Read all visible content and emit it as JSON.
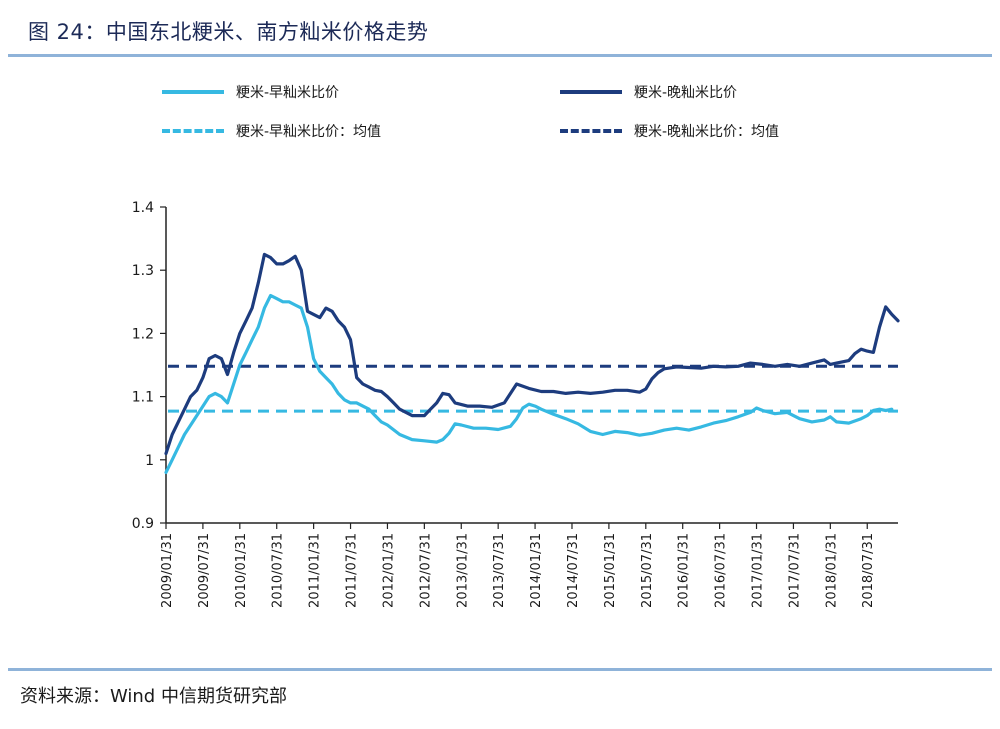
{
  "header": {
    "title": "图 24：中国东北粳米、南方籼米价格走势"
  },
  "footer": {
    "source": "资料来源：Wind 中信期货研究部"
  },
  "colors": {
    "light_series": "#36b9e2",
    "dark_series": "#1d3c7e",
    "rule": "#8fb3d9",
    "axis": "#222222"
  },
  "chart_data": {
    "type": "line",
    "title": "",
    "xlabel": "",
    "ylabel": "",
    "ylim": [
      0.9,
      1.4
    ],
    "yticks": [
      "0.9",
      "1",
      "1.1",
      "1.2",
      "1.3",
      "1.4"
    ],
    "xticks": [
      "2009/01/31",
      "2009/07/31",
      "2010/01/31",
      "2010/07/31",
      "2011/01/31",
      "2011/07/31",
      "2012/01/31",
      "2012/07/31",
      "2013/01/31",
      "2013/07/31",
      "2014/01/31",
      "2014/07/31",
      "2015/01/31",
      "2015/07/31",
      "2016/01/31",
      "2016/07/31",
      "2017/01/31",
      "2017/07/31",
      "2018/01/31",
      "2018/07/31"
    ],
    "legend_position": "top",
    "grid": false,
    "series": [
      {
        "name": "粳米-早籼米比价",
        "style": "solid",
        "color": "#36b9e2",
        "points": [
          [
            0,
            0.98
          ],
          [
            1,
            1.0
          ],
          [
            2,
            1.02
          ],
          [
            3,
            1.04
          ],
          [
            5,
            1.07
          ],
          [
            7,
            1.1
          ],
          [
            8,
            1.105
          ],
          [
            9,
            1.1
          ],
          [
            10,
            1.09
          ],
          [
            12,
            1.15
          ],
          [
            13,
            1.17
          ],
          [
            14,
            1.19
          ],
          [
            15,
            1.21
          ],
          [
            16,
            1.24
          ],
          [
            17,
            1.26
          ],
          [
            18,
            1.255
          ],
          [
            19,
            1.25
          ],
          [
            20,
            1.25
          ],
          [
            21,
            1.245
          ],
          [
            22,
            1.24
          ],
          [
            23,
            1.21
          ],
          [
            24,
            1.16
          ],
          [
            25,
            1.14
          ],
          [
            26,
            1.13
          ],
          [
            27,
            1.12
          ],
          [
            28,
            1.105
          ],
          [
            29,
            1.095
          ],
          [
            30,
            1.09
          ],
          [
            31,
            1.09
          ],
          [
            32,
            1.085
          ],
          [
            33,
            1.08
          ],
          [
            34,
            1.07
          ],
          [
            35,
            1.06
          ],
          [
            36,
            1.055
          ],
          [
            38,
            1.04
          ],
          [
            40,
            1.032
          ],
          [
            42,
            1.03
          ],
          [
            44,
            1.028
          ],
          [
            45,
            1.032
          ],
          [
            46,
            1.042
          ],
          [
            47,
            1.057
          ],
          [
            48,
            1.055
          ],
          [
            50,
            1.05
          ],
          [
            52,
            1.05
          ],
          [
            54,
            1.048
          ],
          [
            56,
            1.053
          ],
          [
            57,
            1.065
          ],
          [
            58,
            1.082
          ],
          [
            59,
            1.088
          ],
          [
            60,
            1.085
          ],
          [
            61,
            1.08
          ],
          [
            63,
            1.072
          ],
          [
            65,
            1.065
          ],
          [
            67,
            1.057
          ],
          [
            69,
            1.045
          ],
          [
            71,
            1.04
          ],
          [
            73,
            1.045
          ],
          [
            75,
            1.043
          ],
          [
            77,
            1.039
          ],
          [
            79,
            1.042
          ],
          [
            81,
            1.047
          ],
          [
            83,
            1.05
          ],
          [
            85,
            1.047
          ],
          [
            87,
            1.052
          ],
          [
            89,
            1.058
          ],
          [
            91,
            1.062
          ],
          [
            93,
            1.068
          ],
          [
            95,
            1.075
          ],
          [
            96,
            1.082
          ],
          [
            97,
            1.078
          ],
          [
            99,
            1.073
          ],
          [
            101,
            1.075
          ],
          [
            103,
            1.065
          ],
          [
            105,
            1.06
          ],
          [
            107,
            1.063
          ],
          [
            108,
            1.068
          ],
          [
            109,
            1.06
          ],
          [
            111,
            1.058
          ],
          [
            113,
            1.065
          ],
          [
            114,
            1.07
          ],
          [
            115,
            1.078
          ],
          [
            116,
            1.08
          ],
          [
            117,
            1.078
          ],
          [
            118,
            1.08
          ]
        ]
      },
      {
        "name": "粳米-晚籼米比价",
        "style": "solid",
        "color": "#1d3c7e",
        "points": [
          [
            0,
            1.01
          ],
          [
            1,
            1.04
          ],
          [
            2,
            1.06
          ],
          [
            3,
            1.08
          ],
          [
            4,
            1.1
          ],
          [
            5,
            1.11
          ],
          [
            6,
            1.13
          ],
          [
            7,
            1.16
          ],
          [
            8,
            1.165
          ],
          [
            9,
            1.16
          ],
          [
            10,
            1.135
          ],
          [
            11,
            1.17
          ],
          [
            12,
            1.2
          ],
          [
            13,
            1.22
          ],
          [
            14,
            1.24
          ],
          [
            15,
            1.28
          ],
          [
            16,
            1.325
          ],
          [
            17,
            1.32
          ],
          [
            18,
            1.31
          ],
          [
            19,
            1.31
          ],
          [
            20,
            1.315
          ],
          [
            21,
            1.322
          ],
          [
            22,
            1.3
          ],
          [
            23,
            1.235
          ],
          [
            24,
            1.23
          ],
          [
            25,
            1.225
          ],
          [
            26,
            1.24
          ],
          [
            27,
            1.235
          ],
          [
            28,
            1.22
          ],
          [
            29,
            1.21
          ],
          [
            30,
            1.19
          ],
          [
            31,
            1.13
          ],
          [
            32,
            1.12
          ],
          [
            33,
            1.115
          ],
          [
            34,
            1.11
          ],
          [
            35,
            1.108
          ],
          [
            36,
            1.1
          ],
          [
            37,
            1.09
          ],
          [
            38,
            1.08
          ],
          [
            40,
            1.07
          ],
          [
            42,
            1.07
          ],
          [
            43,
            1.08
          ],
          [
            44,
            1.09
          ],
          [
            45,
            1.105
          ],
          [
            46,
            1.103
          ],
          [
            47,
            1.09
          ],
          [
            49,
            1.085
          ],
          [
            51,
            1.085
          ],
          [
            53,
            1.083
          ],
          [
            55,
            1.09
          ],
          [
            56,
            1.105
          ],
          [
            57,
            1.12
          ],
          [
            59,
            1.113
          ],
          [
            61,
            1.108
          ],
          [
            63,
            1.108
          ],
          [
            65,
            1.105
          ],
          [
            67,
            1.107
          ],
          [
            69,
            1.105
          ],
          [
            71,
            1.107
          ],
          [
            73,
            1.11
          ],
          [
            75,
            1.11
          ],
          [
            77,
            1.107
          ],
          [
            78,
            1.112
          ],
          [
            79,
            1.128
          ],
          [
            80,
            1.138
          ],
          [
            81,
            1.144
          ],
          [
            83,
            1.147
          ],
          [
            85,
            1.146
          ],
          [
            87,
            1.145
          ],
          [
            89,
            1.148
          ],
          [
            91,
            1.147
          ],
          [
            93,
            1.148
          ],
          [
            95,
            1.153
          ],
          [
            97,
            1.151
          ],
          [
            99,
            1.148
          ],
          [
            101,
            1.151
          ],
          [
            103,
            1.148
          ],
          [
            105,
            1.153
          ],
          [
            107,
            1.158
          ],
          [
            108,
            1.151
          ],
          [
            109,
            1.153
          ],
          [
            111,
            1.157
          ],
          [
            112,
            1.168
          ],
          [
            113,
            1.175
          ],
          [
            114,
            1.172
          ],
          [
            115,
            1.17
          ],
          [
            116,
            1.21
          ],
          [
            117,
            1.242
          ],
          [
            118,
            1.23
          ],
          [
            119,
            1.22
          ]
        ]
      },
      {
        "name": "粳米-早籼米比价：均值",
        "style": "dashed",
        "color": "#36b9e2",
        "value": 1.077
      },
      {
        "name": "粳米-晚籼米比价：均值",
        "style": "dashed",
        "color": "#1d3c7e",
        "value": 1.148
      }
    ]
  }
}
